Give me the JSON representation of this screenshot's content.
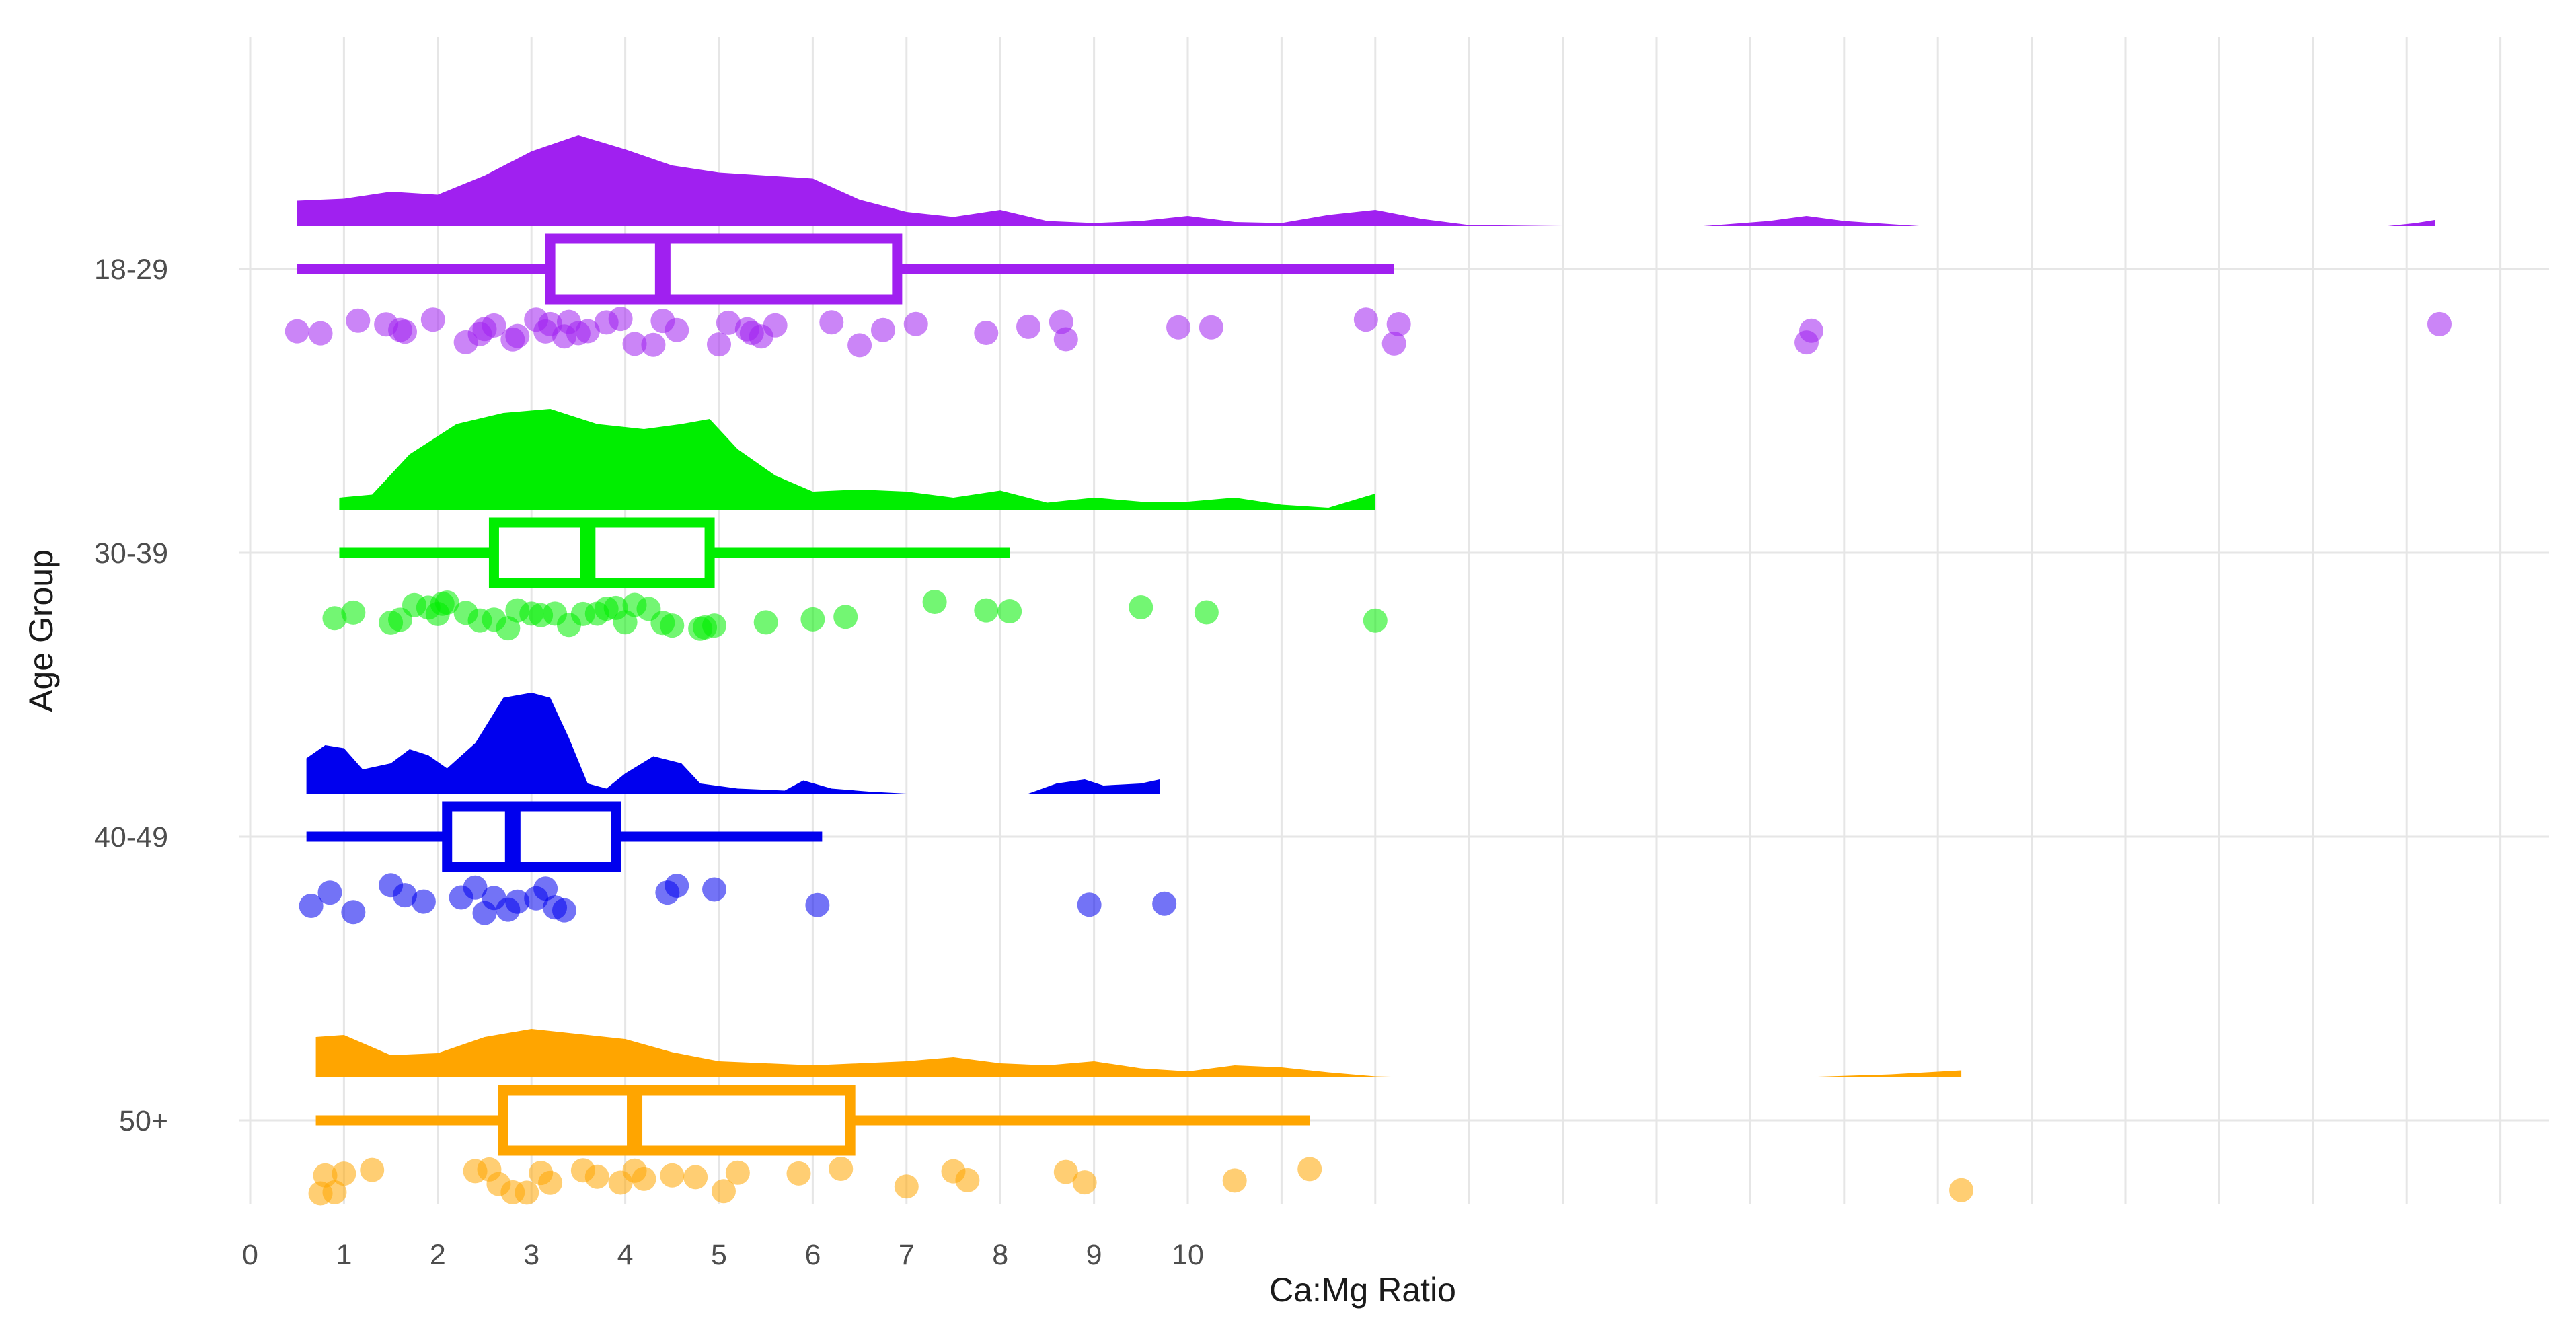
{
  "chart_data": {
    "type": "raincloud",
    "orientation": "horizontal",
    "xlabel": "Ca:Mg Ratio",
    "ylabel": "Age Group",
    "x_ticks": [
      0,
      1,
      2,
      3,
      4,
      5,
      6,
      7,
      8,
      9,
      10
    ],
    "xlim": [
      -0.3,
      24.5
    ],
    "grid": true,
    "legend": "none",
    "groups": [
      {
        "name": "18-29",
        "color": "#A020F0",
        "box": {
          "min": 0.5,
          "q1": 3.2,
          "median": 4.4,
          "q3": 6.9,
          "max": 12.2
        },
        "density": [
          [
            0.5,
            0.25
          ],
          [
            1.0,
            0.27
          ],
          [
            1.5,
            0.34
          ],
          [
            2.0,
            0.31
          ],
          [
            2.5,
            0.5
          ],
          [
            3.0,
            0.74
          ],
          [
            3.5,
            0.9
          ],
          [
            4.0,
            0.76
          ],
          [
            4.5,
            0.6
          ],
          [
            5.0,
            0.53
          ],
          [
            5.5,
            0.5
          ],
          [
            6.0,
            0.47
          ],
          [
            6.5,
            0.26
          ],
          [
            7.0,
            0.14
          ],
          [
            7.5,
            0.09
          ],
          [
            8.0,
            0.16
          ],
          [
            8.5,
            0.05
          ],
          [
            9.0,
            0.03
          ],
          [
            9.5,
            0.05
          ],
          [
            10.0,
            0.1
          ],
          [
            10.5,
            0.04
          ],
          [
            11.0,
            0.03
          ],
          [
            11.5,
            0.11
          ],
          [
            12.0,
            0.16
          ],
          [
            12.5,
            0.07
          ],
          [
            13.0,
            0.01
          ],
          [
            14.0,
            0.0
          ],
          [
            15.5,
            0.0
          ],
          [
            16.2,
            0.05
          ],
          [
            16.6,
            0.1
          ],
          [
            17.0,
            0.05
          ],
          [
            17.8,
            0.0
          ],
          [
            22.8,
            0.0
          ],
          [
            23.1,
            0.03
          ],
          [
            23.3,
            0.06
          ]
        ],
        "points": [
          0.5,
          0.75,
          1.15,
          1.45,
          1.6,
          1.65,
          1.95,
          2.3,
          2.45,
          2.5,
          2.6,
          2.8,
          2.85,
          3.05,
          3.15,
          3.2,
          3.35,
          3.4,
          3.5,
          3.6,
          3.8,
          3.95,
          4.1,
          4.3,
          4.4,
          4.55,
          5.0,
          5.1,
          5.3,
          5.35,
          5.45,
          5.6,
          6.2,
          6.5,
          6.75,
          7.1,
          7.85,
          8.3,
          8.65,
          8.7,
          9.9,
          10.25,
          11.9,
          12.2,
          12.25,
          16.6,
          16.65,
          23.35
        ]
      },
      {
        "name": "30-39",
        "color": "#00EE00",
        "box": {
          "min": 0.95,
          "q1": 2.6,
          "median": 3.6,
          "q3": 4.9,
          "max": 8.1
        },
        "density": [
          [
            0.95,
            0.12
          ],
          [
            1.3,
            0.15
          ],
          [
            1.7,
            0.55
          ],
          [
            2.2,
            0.85
          ],
          [
            2.7,
            0.96
          ],
          [
            3.2,
            1.0
          ],
          [
            3.7,
            0.85
          ],
          [
            4.2,
            0.8
          ],
          [
            4.6,
            0.85
          ],
          [
            4.9,
            0.9
          ],
          [
            5.2,
            0.6
          ],
          [
            5.6,
            0.34
          ],
          [
            6.0,
            0.18
          ],
          [
            6.5,
            0.2
          ],
          [
            7.0,
            0.18
          ],
          [
            7.5,
            0.12
          ],
          [
            8.0,
            0.19
          ],
          [
            8.5,
            0.07
          ],
          [
            9.0,
            0.12
          ],
          [
            9.5,
            0.08
          ],
          [
            10.0,
            0.08
          ],
          [
            10.5,
            0.12
          ],
          [
            11.0,
            0.05
          ],
          [
            11.5,
            0.02
          ],
          [
            12.0,
            0.16
          ]
        ],
        "points": [
          0.9,
          1.1,
          1.5,
          1.6,
          1.75,
          1.9,
          2.0,
          2.05,
          2.1,
          2.3,
          2.45,
          2.6,
          2.75,
          2.85,
          3.0,
          3.1,
          3.25,
          3.4,
          3.55,
          3.7,
          3.8,
          3.9,
          4.0,
          4.1,
          4.25,
          4.4,
          4.5,
          4.8,
          4.85,
          4.95,
          5.5,
          6.0,
          6.35,
          7.3,
          7.85,
          8.1,
          9.5,
          10.2,
          12.0
        ]
      },
      {
        "name": "40-49",
        "color": "#0000EE",
        "box": {
          "min": 0.6,
          "q1": 2.1,
          "median": 2.8,
          "q3": 3.9,
          "max": 6.1
        },
        "density": [
          [
            0.6,
            0.35
          ],
          [
            0.8,
            0.48
          ],
          [
            1.0,
            0.45
          ],
          [
            1.2,
            0.24
          ],
          [
            1.5,
            0.3
          ],
          [
            1.7,
            0.44
          ],
          [
            1.9,
            0.38
          ],
          [
            2.1,
            0.25
          ],
          [
            2.4,
            0.5
          ],
          [
            2.7,
            0.95
          ],
          [
            3.0,
            1.0
          ],
          [
            3.2,
            0.95
          ],
          [
            3.4,
            0.55
          ],
          [
            3.6,
            0.1
          ],
          [
            3.8,
            0.05
          ],
          [
            4.0,
            0.2
          ],
          [
            4.3,
            0.37
          ],
          [
            4.6,
            0.3
          ],
          [
            4.8,
            0.1
          ],
          [
            5.2,
            0.05
          ],
          [
            5.7,
            0.03
          ],
          [
            5.9,
            0.13
          ],
          [
            6.2,
            0.05
          ],
          [
            6.6,
            0.02
          ],
          [
            7.0,
            0.0
          ],
          [
            8.3,
            0.0
          ],
          [
            8.6,
            0.1
          ],
          [
            8.9,
            0.14
          ],
          [
            9.1,
            0.08
          ],
          [
            9.3,
            0.09
          ],
          [
            9.5,
            0.1
          ],
          [
            9.7,
            0.14
          ]
        ],
        "points": [
          0.65,
          0.85,
          1.1,
          1.5,
          1.65,
          1.85,
          2.25,
          2.4,
          2.5,
          2.6,
          2.75,
          2.85,
          3.05,
          3.15,
          3.25,
          3.35,
          4.45,
          4.55,
          4.95,
          6.05,
          8.95,
          9.75
        ]
      },
      {
        "name": "50+",
        "color": "#FFA500",
        "box": {
          "min": 0.7,
          "q1": 2.7,
          "median": 4.1,
          "q3": 6.4,
          "max": 11.3
        },
        "density": [
          [
            0.7,
            0.4
          ],
          [
            1.0,
            0.42
          ],
          [
            1.5,
            0.22
          ],
          [
            2.0,
            0.24
          ],
          [
            2.5,
            0.4
          ],
          [
            3.0,
            0.48
          ],
          [
            3.5,
            0.43
          ],
          [
            4.0,
            0.38
          ],
          [
            4.5,
            0.25
          ],
          [
            5.0,
            0.16
          ],
          [
            5.5,
            0.14
          ],
          [
            6.0,
            0.12
          ],
          [
            6.5,
            0.14
          ],
          [
            7.0,
            0.16
          ],
          [
            7.5,
            0.2
          ],
          [
            8.0,
            0.14
          ],
          [
            8.5,
            0.12
          ],
          [
            9.0,
            0.16
          ],
          [
            9.5,
            0.09
          ],
          [
            10.0,
            0.06
          ],
          [
            10.5,
            0.12
          ],
          [
            11.0,
            0.1
          ],
          [
            11.5,
            0.05
          ],
          [
            12.0,
            0.01
          ],
          [
            12.5,
            0.0
          ],
          [
            16.5,
            0.0
          ],
          [
            17.5,
            0.03
          ],
          [
            18.25,
            0.07
          ]
        ],
        "points": [
          0.75,
          0.8,
          0.9,
          1.0,
          1.3,
          2.4,
          2.55,
          2.65,
          2.8,
          2.95,
          3.1,
          3.2,
          3.55,
          3.7,
          3.95,
          4.1,
          4.2,
          4.5,
          4.75,
          5.05,
          5.2,
          5.85,
          6.3,
          7.0,
          7.5,
          7.65,
          8.7,
          8.9,
          10.5,
          11.3,
          18.25
        ]
      }
    ]
  }
}
